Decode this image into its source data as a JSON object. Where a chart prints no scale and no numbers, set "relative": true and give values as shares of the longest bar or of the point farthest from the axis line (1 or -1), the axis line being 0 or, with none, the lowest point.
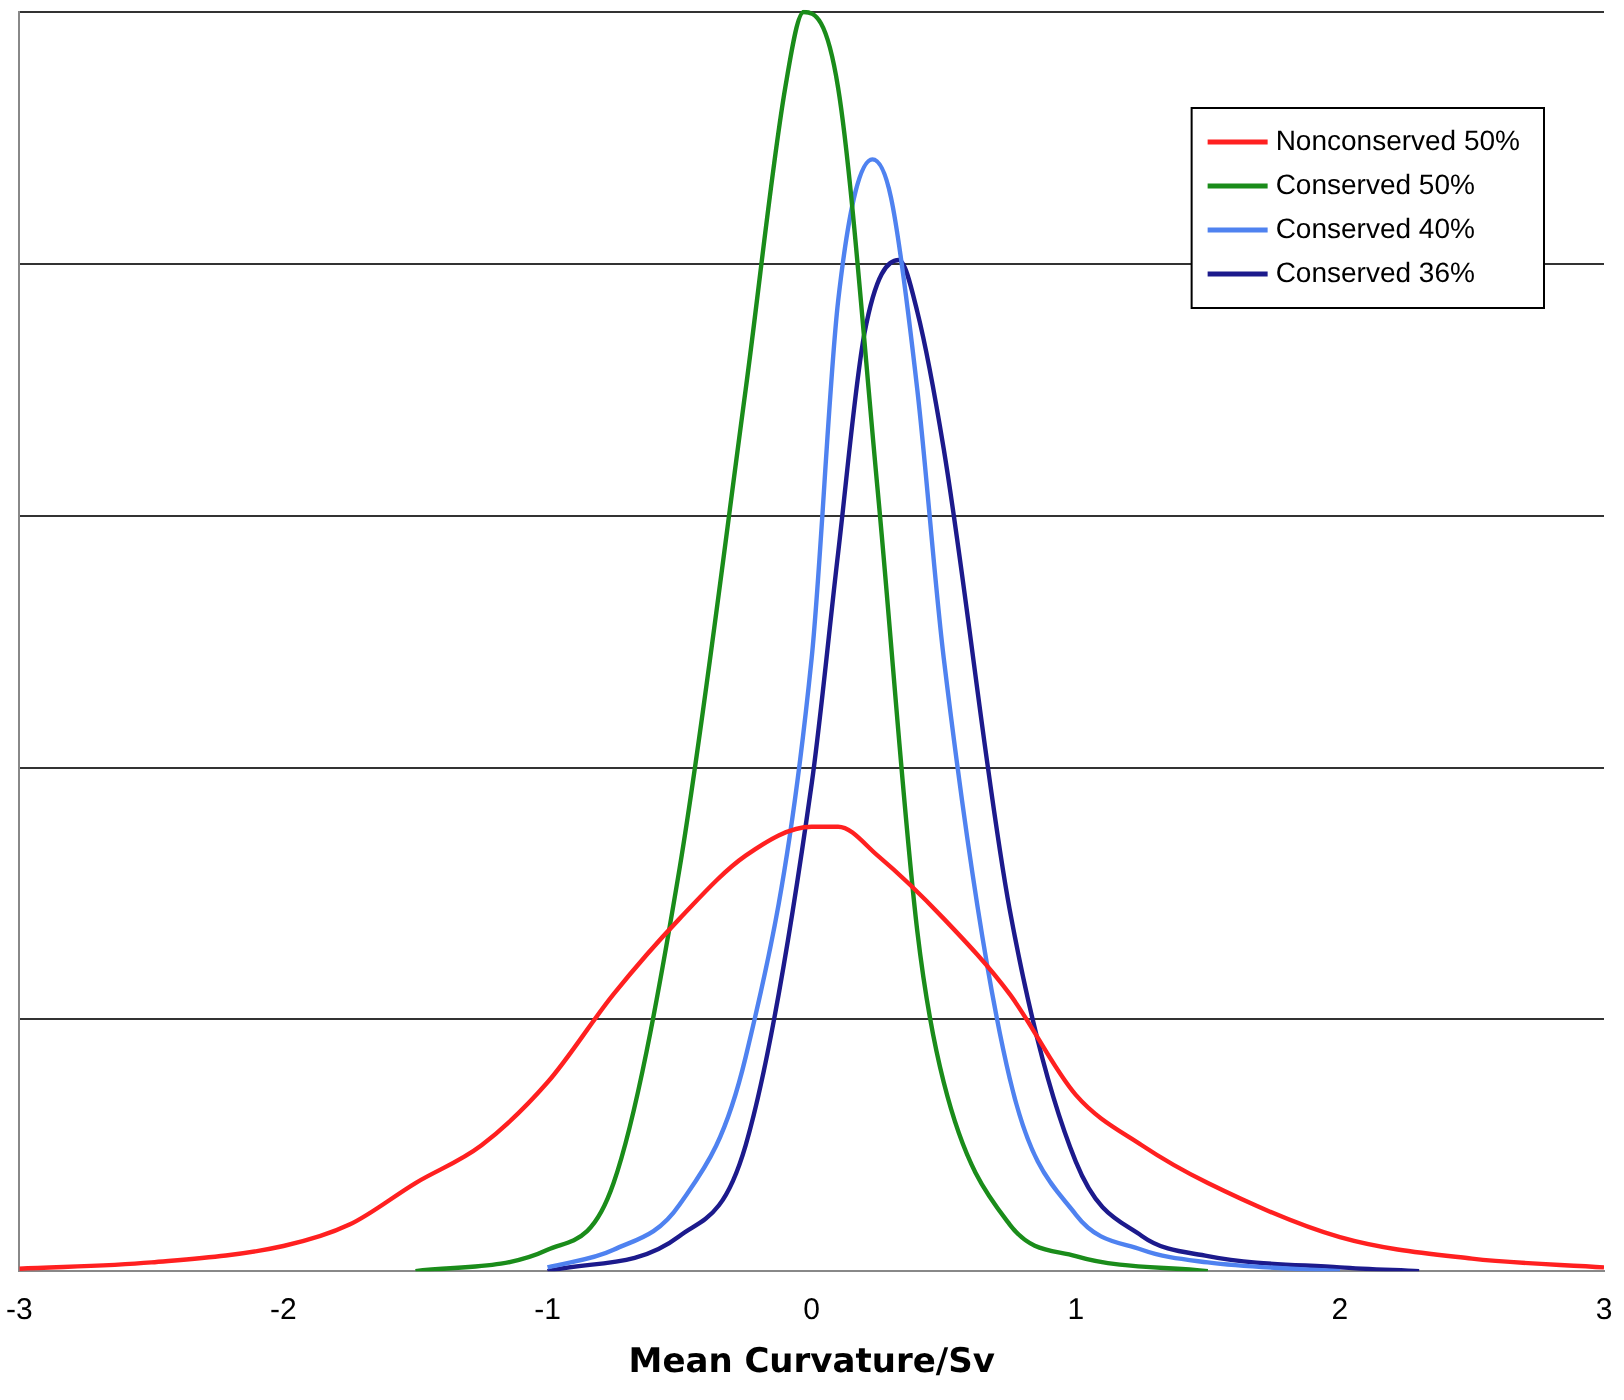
{
  "chart_data": {
    "type": "line",
    "xlabel": "Mean Curvature/Sv",
    "relative": true,
    "xlim": [
      -3,
      3
    ],
    "xticks": [
      -3,
      -2,
      -1,
      0,
      1,
      2,
      3
    ],
    "grid": "y",
    "legend": "top right",
    "marker": "none",
    "series": [
      {
        "name": "Nonconserved 50%",
        "color": "#ff2020",
        "x": [
          -3,
          -2.5,
          -2,
          -1.75,
          -1.5,
          -1.25,
          -1,
          -0.75,
          -0.5,
          -0.25,
          0,
          0.1,
          0.25,
          0.5,
          0.75,
          1,
          1.25,
          1.5,
          2,
          2.5,
          3
        ],
        "values": [
          0.002,
          0.007,
          0.02,
          0.037,
          0.07,
          0.1,
          0.15,
          0.22,
          0.28,
          0.33,
          0.353,
          0.353,
          0.33,
          0.28,
          0.22,
          0.14,
          0.1,
          0.07,
          0.027,
          0.01,
          0.003
        ]
      },
      {
        "name": "Conserved 50%",
        "color": "#1a8c1a",
        "x": [
          -1.5,
          -1,
          -0.75,
          -0.5,
          -0.25,
          -0.1,
          -0.03,
          0.1,
          0.25,
          0.4,
          0.5,
          0.75,
          1,
          1.5
        ],
        "values": [
          0,
          0.017,
          0.07,
          0.32,
          0.7,
          0.94,
          1,
          0.94,
          0.62,
          0.27,
          0.15,
          0.037,
          0.012,
          0
        ]
      },
      {
        "name": "Conserved 40%",
        "color": "#4f82f0",
        "x": [
          -1,
          -0.75,
          -0.5,
          -0.25,
          0,
          0.1,
          0.23,
          0.3,
          0.4,
          0.5,
          0.75,
          1,
          1.25,
          1.5,
          2
        ],
        "values": [
          0.003,
          0.017,
          0.053,
          0.17,
          0.487,
          0.77,
          0.883,
          0.853,
          0.7,
          0.487,
          0.153,
          0.045,
          0.017,
          0.007,
          0
        ]
      },
      {
        "name": "Conserved 36%",
        "color": "#1c1a8c",
        "x": [
          -1,
          -0.5,
          -0.25,
          0,
          0.1,
          0.2,
          0.33,
          0.4,
          0.5,
          0.75,
          1,
          1.25,
          1.5,
          2,
          2.3
        ],
        "values": [
          0,
          0.028,
          0.1,
          0.387,
          0.57,
          0.745,
          0.803,
          0.762,
          0.653,
          0.287,
          0.087,
          0.028,
          0.012,
          0.003,
          0
        ]
      }
    ]
  }
}
